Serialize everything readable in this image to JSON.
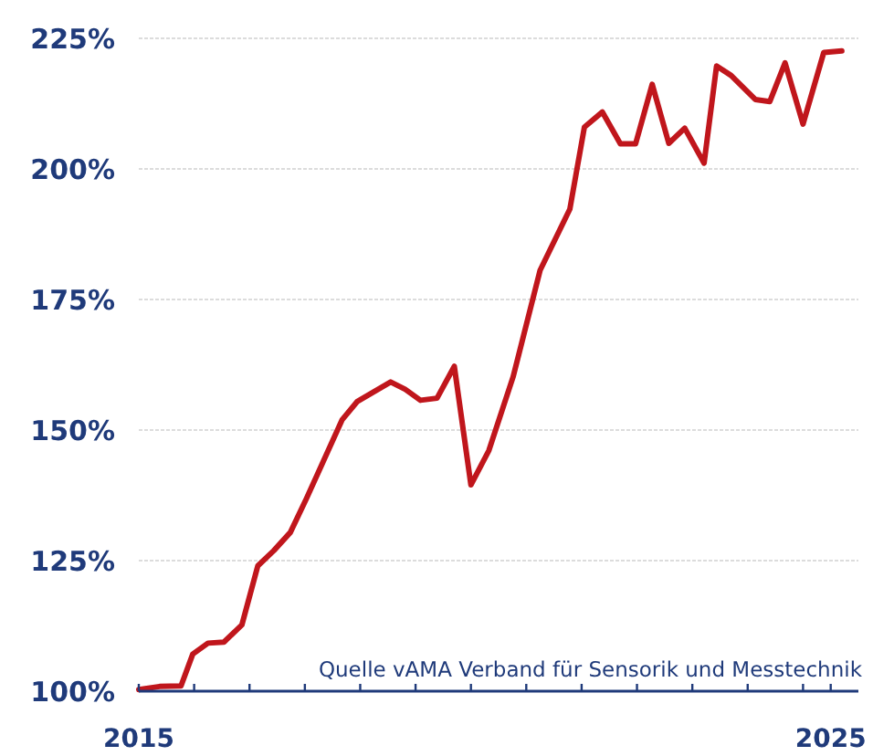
{
  "chart_data": {
    "type": "line",
    "x": [
      2015.0,
      2015.3,
      2015.61,
      2015.78,
      2016.0,
      2016.23,
      2016.49,
      2016.72,
      2016.95,
      2017.19,
      2017.42,
      2017.68,
      2017.94,
      2018.16,
      2018.38,
      2018.64,
      2018.85,
      2019.07,
      2019.31,
      2019.56,
      2019.8,
      2020.06,
      2020.41,
      2020.8,
      2021.23,
      2021.44,
      2021.7,
      2021.96,
      2022.18,
      2022.42,
      2022.66,
      2022.89,
      2023.17,
      2023.35,
      2023.56,
      2023.91,
      2024.12,
      2024.34,
      2024.6,
      2024.9,
      2025.16
    ],
    "series": [
      {
        "color": "#c0161c",
        "values": [
          100.3,
          100.9,
          101.0,
          107.1,
          109.2,
          109.4,
          112.7,
          124.0,
          126.9,
          130.4,
          136.8,
          144.4,
          152.0,
          155.5,
          157.2,
          159.2,
          157.8,
          155.7,
          156.1,
          162.2,
          139.5,
          146.1,
          160.2,
          180.6,
          192.3,
          208.0,
          210.9,
          204.8,
          204.8,
          216.2,
          204.9,
          207.8,
          201.1,
          219.7,
          217.9,
          213.3,
          212.9,
          220.3,
          208.6,
          222.3,
          222.6
        ]
      }
    ],
    "xlim": [
      2015,
      2025.4
    ],
    "xticks": [
      2015,
      {
        "value": 2015.8,
        "label": null
      },
      {
        "value": 2016.6,
        "label": null
      },
      {
        "value": 2017.4,
        "label": null
      },
      {
        "value": 2018.2,
        "label": null
      },
      {
        "value": 2019.0,
        "label": null
      },
      {
        "value": 2019.8,
        "label": null
      },
      {
        "value": 2020.6,
        "label": null
      },
      {
        "value": 2021.4,
        "label": null
      },
      {
        "value": 2022.2,
        "label": null
      },
      {
        "value": 2023.0,
        "label": null
      },
      {
        "value": 2023.8,
        "label": null
      },
      {
        "value": 2024.6,
        "label": null
      },
      2025
    ],
    "ylim": [
      100,
      225
    ],
    "yticks": [
      {
        "value": 100,
        "label": "100%"
      },
      {
        "value": 125,
        "label": "125%"
      },
      {
        "value": 150,
        "label": "150%"
      },
      {
        "value": 175,
        "label": "175%"
      },
      {
        "value": 200,
        "label": "200%"
      },
      {
        "value": 225,
        "label": "225%"
      }
    ],
    "grid": "y",
    "marker": "none",
    "line_style": "solid",
    "annotations": [
      "Quelle vAMA Verband für Sensorik und Messtechnik"
    ]
  }
}
